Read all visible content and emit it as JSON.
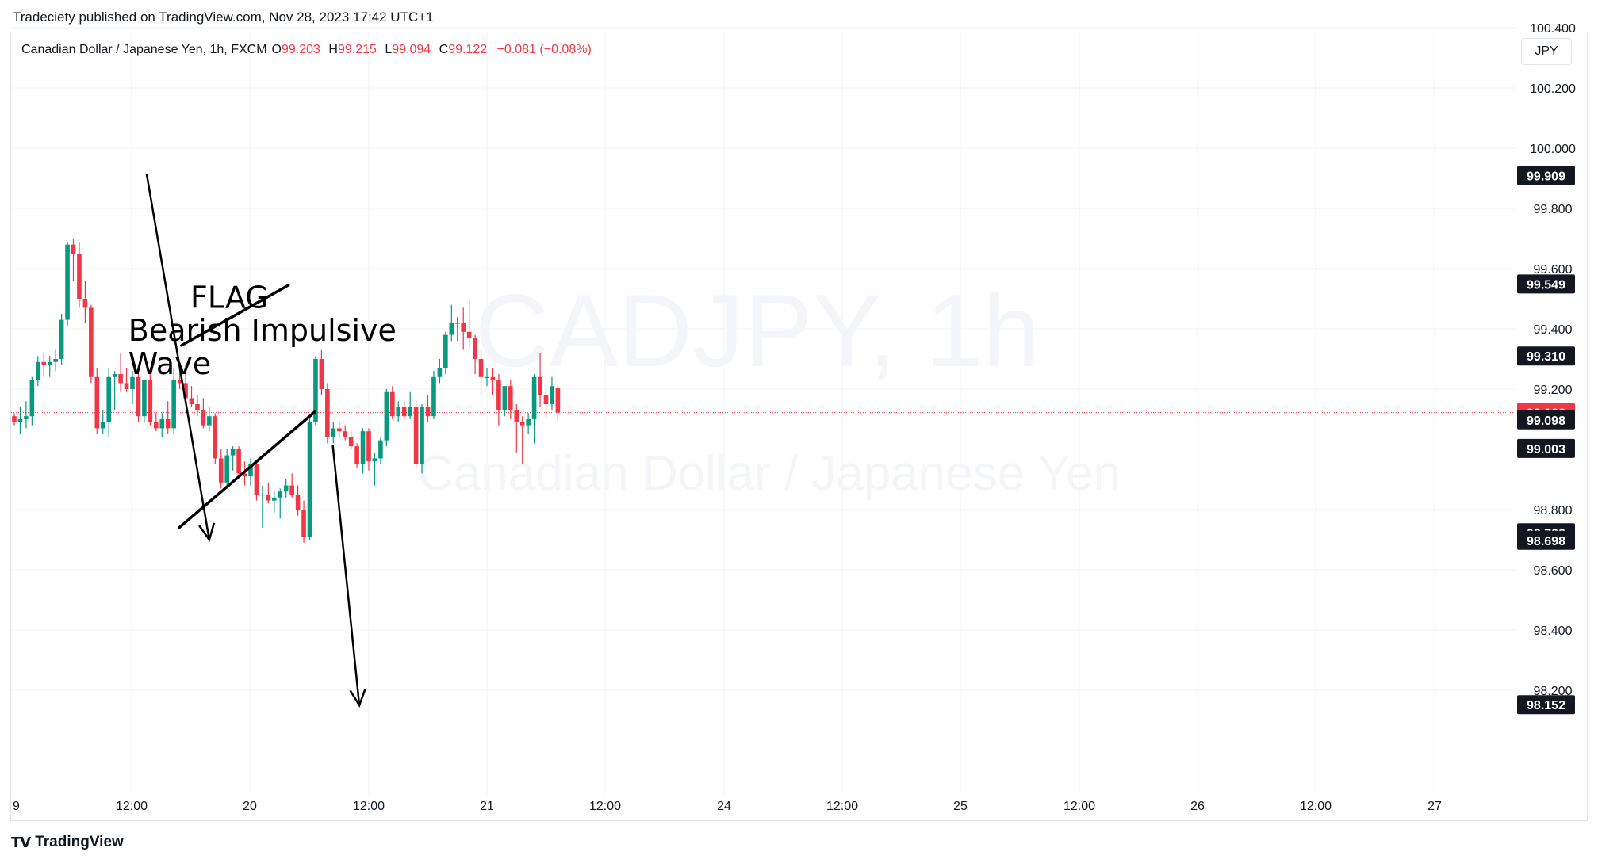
{
  "header": {
    "text": "Tradeciety published on TradingView.com, Nov 28, 2023 17:42 UTC+1"
  },
  "legend": {
    "symbol": "Canadian Dollar / Japanese Yen, 1h, FXCM",
    "o_label": "O",
    "o_value": "99.203",
    "h_label": "H",
    "h_value": "99.215",
    "l_label": "L",
    "l_value": "99.094",
    "c_label": "C",
    "c_value": "99.122",
    "change": "−0.081 (−0.08%)"
  },
  "currency_button": "JPY",
  "watermark": {
    "line1": "CADJPY, 1h",
    "line2": "Canadian Dollar / Japanese Yen"
  },
  "footer": {
    "logo": "TV",
    "brand": "TradingView"
  },
  "colors": {
    "up": "#089981",
    "down": "#f23645",
    "axis_label_bg": "#131722",
    "current_price_bg": "#f23645",
    "grid": "#f0f3fa"
  },
  "chart_data": {
    "type": "candlestick",
    "symbol": "CADJPY",
    "timeframe": "1h",
    "y_axis": {
      "ticks": [
        100.4,
        100.2,
        100.0,
        99.8,
        99.6,
        99.4,
        99.2,
        98.8,
        98.6,
        98.4,
        98.2
      ],
      "range": [
        97.985,
        100.6
      ]
    },
    "x_axis": {
      "ticks": [
        "9",
        "12:00",
        "20",
        "12:00",
        "21",
        "12:00",
        "24",
        "12:00",
        "25",
        "12:00",
        "26",
        "12:00",
        "27"
      ]
    },
    "price_labels": [
      {
        "text": "99.909",
        "value": 99.909,
        "style": "dark"
      },
      {
        "text": "99.549",
        "value": 99.549,
        "style": "dark"
      },
      {
        "text": "99.310",
        "value": 99.31,
        "style": "dark"
      },
      {
        "text": "99.122",
        "value": 99.122,
        "style": "current"
      },
      {
        "text": "99.098",
        "value": 99.098,
        "style": "dark"
      },
      {
        "text": "99.003",
        "value": 99.003,
        "style": "dark"
      },
      {
        "text": "98.723",
        "value": 98.723,
        "style": "dark"
      },
      {
        "text": "98.698",
        "value": 98.698,
        "style": "dark"
      },
      {
        "text": "98.152",
        "value": 98.152,
        "style": "dark"
      }
    ],
    "current_price": 99.122,
    "annotations": [
      {
        "text": "Bearish Impulsive",
        "x": 19.3,
        "y": 99.36
      },
      {
        "text": "Wave",
        "x": 19.3,
        "y": 99.25
      },
      {
        "text": "FLAG",
        "x": 29.8,
        "y": 99.47
      }
    ],
    "trend_lines": [
      {
        "x1": 28.3,
        "y1": 99.345,
        "x2": 46.4,
        "y2": 99.545,
        "kind": "flag-upper"
      },
      {
        "x1": 27.9,
        "y1": 98.74,
        "x2": 50.9,
        "y2": 99.125,
        "kind": "flag-lower"
      }
    ],
    "arrows": [
      {
        "x1": 22.4,
        "y1": 99.915,
        "x2": 33.0,
        "y2": 98.7
      },
      {
        "x1": 53.9,
        "y1": 99.015,
        "x2": 58.4,
        "y2": 98.15
      }
    ],
    "candles": [
      {
        "x": 0,
        "o": 99.11,
        "h": 99.12,
        "l": 99.08,
        "c": 99.09
      },
      {
        "x": 1,
        "o": 99.09,
        "h": 99.14,
        "l": 99.05,
        "c": 99.1
      },
      {
        "x": 2,
        "o": 99.1,
        "h": 99.16,
        "l": 99.07,
        "c": 99.11
      },
      {
        "x": 3,
        "o": 99.11,
        "h": 99.24,
        "l": 99.08,
        "c": 99.23
      },
      {
        "x": 4,
        "o": 99.23,
        "h": 99.31,
        "l": 99.21,
        "c": 99.29
      },
      {
        "x": 5,
        "o": 99.29,
        "h": 99.32,
        "l": 99.24,
        "c": 99.28
      },
      {
        "x": 6,
        "o": 99.28,
        "h": 99.31,
        "l": 99.24,
        "c": 99.29
      },
      {
        "x": 7,
        "o": 99.29,
        "h": 99.33,
        "l": 99.26,
        "c": 99.3
      },
      {
        "x": 8,
        "o": 99.3,
        "h": 99.45,
        "l": 99.28,
        "c": 99.43
      },
      {
        "x": 9,
        "o": 99.43,
        "h": 99.69,
        "l": 99.41,
        "c": 99.68
      },
      {
        "x": 10,
        "o": 99.68,
        "h": 99.7,
        "l": 99.56,
        "c": 99.65
      },
      {
        "x": 11,
        "o": 99.65,
        "h": 99.69,
        "l": 99.47,
        "c": 99.5
      },
      {
        "x": 12,
        "o": 99.5,
        "h": 99.56,
        "l": 99.42,
        "c": 99.47
      },
      {
        "x": 13,
        "o": 99.47,
        "h": 99.48,
        "l": 99.22,
        "c": 99.24
      },
      {
        "x": 14,
        "o": 99.24,
        "h": 99.27,
        "l": 99.05,
        "c": 99.07
      },
      {
        "x": 15,
        "o": 99.07,
        "h": 99.13,
        "l": 99.05,
        "c": 99.09
      },
      {
        "x": 16,
        "o": 99.09,
        "h": 99.27,
        "l": 99.04,
        "c": 99.24
      },
      {
        "x": 17,
        "o": 99.24,
        "h": 99.26,
        "l": 99.13,
        "c": 99.25
      },
      {
        "x": 18,
        "o": 99.25,
        "h": 99.32,
        "l": 99.19,
        "c": 99.22
      },
      {
        "x": 19,
        "o": 99.22,
        "h": 99.27,
        "l": 99.19,
        "c": 99.2
      },
      {
        "x": 20,
        "o": 99.2,
        "h": 99.26,
        "l": 99.15,
        "c": 99.24
      },
      {
        "x": 21,
        "o": 99.24,
        "h": 99.28,
        "l": 99.09,
        "c": 99.11
      },
      {
        "x": 22,
        "o": 99.11,
        "h": 99.23,
        "l": 99.09,
        "c": 99.23
      },
      {
        "x": 23,
        "o": 99.23,
        "h": 99.25,
        "l": 99.08,
        "c": 99.09
      },
      {
        "x": 24,
        "o": 99.09,
        "h": 99.12,
        "l": 99.06,
        "c": 99.07
      },
      {
        "x": 25,
        "o": 99.07,
        "h": 99.12,
        "l": 99.04,
        "c": 99.1
      },
      {
        "x": 26,
        "o": 99.1,
        "h": 99.16,
        "l": 99.05,
        "c": 99.07
      },
      {
        "x": 27,
        "o": 99.07,
        "h": 99.27,
        "l": 99.05,
        "c": 99.23
      },
      {
        "x": 28,
        "o": 99.23,
        "h": 99.28,
        "l": 99.2,
        "c": 99.22
      },
      {
        "x": 29,
        "o": 99.22,
        "h": 99.28,
        "l": 99.15,
        "c": 99.17
      },
      {
        "x": 30,
        "o": 99.17,
        "h": 99.21,
        "l": 99.14,
        "c": 99.15
      },
      {
        "x": 31,
        "o": 99.15,
        "h": 99.18,
        "l": 99.11,
        "c": 99.13
      },
      {
        "x": 32,
        "o": 99.13,
        "h": 99.17,
        "l": 99.07,
        "c": 99.08
      },
      {
        "x": 33,
        "o": 99.08,
        "h": 99.14,
        "l": 99.06,
        "c": 99.11
      },
      {
        "x": 34,
        "o": 99.11,
        "h": 99.12,
        "l": 98.95,
        "c": 98.97
      },
      {
        "x": 35,
        "o": 98.97,
        "h": 99.0,
        "l": 98.87,
        "c": 98.89
      },
      {
        "x": 36,
        "o": 98.89,
        "h": 99.0,
        "l": 98.87,
        "c": 98.98
      },
      {
        "x": 37,
        "o": 98.98,
        "h": 99.01,
        "l": 98.93,
        "c": 99.0
      },
      {
        "x": 38,
        "o": 99.0,
        "h": 99.01,
        "l": 98.91,
        "c": 98.92
      },
      {
        "x": 39,
        "o": 98.92,
        "h": 98.96,
        "l": 98.88,
        "c": 98.91
      },
      {
        "x": 40,
        "o": 98.91,
        "h": 98.97,
        "l": 98.88,
        "c": 98.95
      },
      {
        "x": 41,
        "o": 98.95,
        "h": 98.96,
        "l": 98.83,
        "c": 98.85
      },
      {
        "x": 42,
        "o": 98.85,
        "h": 98.88,
        "l": 98.74,
        "c": 98.85
      },
      {
        "x": 43,
        "o": 98.85,
        "h": 98.89,
        "l": 98.82,
        "c": 98.83
      },
      {
        "x": 44,
        "o": 98.83,
        "h": 98.86,
        "l": 98.79,
        "c": 98.84
      },
      {
        "x": 45,
        "o": 98.84,
        "h": 98.87,
        "l": 98.77,
        "c": 98.86
      },
      {
        "x": 46,
        "o": 98.86,
        "h": 98.9,
        "l": 98.84,
        "c": 98.88
      },
      {
        "x": 47,
        "o": 98.88,
        "h": 98.92,
        "l": 98.84,
        "c": 98.85
      },
      {
        "x": 48,
        "o": 98.85,
        "h": 98.88,
        "l": 98.78,
        "c": 98.8
      },
      {
        "x": 49,
        "o": 98.8,
        "h": 98.83,
        "l": 98.69,
        "c": 98.71
      },
      {
        "x": 50,
        "o": 98.71,
        "h": 99.11,
        "l": 98.7,
        "c": 99.09
      },
      {
        "x": 51,
        "o": 99.09,
        "h": 99.31,
        "l": 99.08,
        "c": 99.3
      },
      {
        "x": 52,
        "o": 99.3,
        "h": 99.33,
        "l": 99.18,
        "c": 99.2
      },
      {
        "x": 53,
        "o": 99.2,
        "h": 99.22,
        "l": 99.02,
        "c": 99.04
      },
      {
        "x": 54,
        "o": 99.04,
        "h": 99.09,
        "l": 99.02,
        "c": 99.07
      },
      {
        "x": 55,
        "o": 99.07,
        "h": 99.09,
        "l": 99.04,
        "c": 99.06
      },
      {
        "x": 56,
        "o": 99.06,
        "h": 99.08,
        "l": 99.03,
        "c": 99.04
      },
      {
        "x": 57,
        "o": 99.04,
        "h": 99.06,
        "l": 99.0,
        "c": 99.01
      },
      {
        "x": 58,
        "o": 99.01,
        "h": 99.02,
        "l": 98.94,
        "c": 98.95
      },
      {
        "x": 59,
        "o": 98.95,
        "h": 99.07,
        "l": 98.92,
        "c": 99.06
      },
      {
        "x": 60,
        "o": 99.06,
        "h": 99.07,
        "l": 98.93,
        "c": 98.96
      },
      {
        "x": 61,
        "o": 98.96,
        "h": 98.99,
        "l": 98.88,
        "c": 98.97
      },
      {
        "x": 62,
        "o": 98.97,
        "h": 99.04,
        "l": 98.95,
        "c": 99.03
      },
      {
        "x": 63,
        "o": 99.03,
        "h": 99.2,
        "l": 99.01,
        "c": 99.19
      },
      {
        "x": 64,
        "o": 99.19,
        "h": 99.21,
        "l": 99.1,
        "c": 99.11
      },
      {
        "x": 65,
        "o": 99.11,
        "h": 99.16,
        "l": 99.09,
        "c": 99.14
      },
      {
        "x": 66,
        "o": 99.14,
        "h": 99.16,
        "l": 99.1,
        "c": 99.11
      },
      {
        "x": 67,
        "o": 99.11,
        "h": 99.19,
        "l": 99.1,
        "c": 99.14
      },
      {
        "x": 68,
        "o": 99.14,
        "h": 99.16,
        "l": 98.94,
        "c": 98.95
      },
      {
        "x": 69,
        "o": 98.95,
        "h": 99.15,
        "l": 98.92,
        "c": 99.14
      },
      {
        "x": 70,
        "o": 99.14,
        "h": 99.18,
        "l": 99.09,
        "c": 99.11
      },
      {
        "x": 71,
        "o": 99.11,
        "h": 99.26,
        "l": 99.1,
        "c": 99.24
      },
      {
        "x": 72,
        "o": 99.24,
        "h": 99.3,
        "l": 99.22,
        "c": 99.27
      },
      {
        "x": 73,
        "o": 99.27,
        "h": 99.39,
        "l": 99.25,
        "c": 99.38
      },
      {
        "x": 74,
        "o": 99.38,
        "h": 99.48,
        "l": 99.36,
        "c": 99.42
      },
      {
        "x": 75,
        "o": 99.42,
        "h": 99.44,
        "l": 99.36,
        "c": 99.42
      },
      {
        "x": 76,
        "o": 99.42,
        "h": 99.47,
        "l": 99.33,
        "c": 99.39
      },
      {
        "x": 77,
        "o": 99.39,
        "h": 99.5,
        "l": 99.34,
        "c": 99.37
      },
      {
        "x": 78,
        "o": 99.37,
        "h": 99.38,
        "l": 99.25,
        "c": 99.3
      },
      {
        "x": 79,
        "o": 99.3,
        "h": 99.33,
        "l": 99.18,
        "c": 99.24
      },
      {
        "x": 80,
        "o": 99.24,
        "h": 99.27,
        "l": 99.21,
        "c": 99.24
      },
      {
        "x": 81,
        "o": 99.24,
        "h": 99.27,
        "l": 99.18,
        "c": 99.23
      },
      {
        "x": 82,
        "o": 99.23,
        "h": 99.25,
        "l": 99.08,
        "c": 99.13
      },
      {
        "x": 83,
        "o": 99.13,
        "h": 99.21,
        "l": 99.11,
        "c": 99.21
      },
      {
        "x": 84,
        "o": 99.21,
        "h": 99.23,
        "l": 99.1,
        "c": 99.13
      },
      {
        "x": 85,
        "o": 99.13,
        "h": 99.15,
        "l": 98.99,
        "c": 99.09
      },
      {
        "x": 86,
        "o": 99.09,
        "h": 99.11,
        "l": 98.95,
        "c": 99.08
      },
      {
        "x": 87,
        "o": 99.08,
        "h": 99.12,
        "l": 99.05,
        "c": 99.1
      },
      {
        "x": 88,
        "o": 99.1,
        "h": 99.25,
        "l": 99.02,
        "c": 99.24
      },
      {
        "x": 89,
        "o": 99.24,
        "h": 99.32,
        "l": 99.14,
        "c": 99.18
      },
      {
        "x": 90,
        "o": 99.18,
        "h": 99.2,
        "l": 99.1,
        "c": 99.15
      },
      {
        "x": 91,
        "o": 99.15,
        "h": 99.24,
        "l": 99.13,
        "c": 99.21
      },
      {
        "x": 92,
        "o": 99.203,
        "h": 99.215,
        "l": 99.094,
        "c": 99.122
      }
    ]
  }
}
